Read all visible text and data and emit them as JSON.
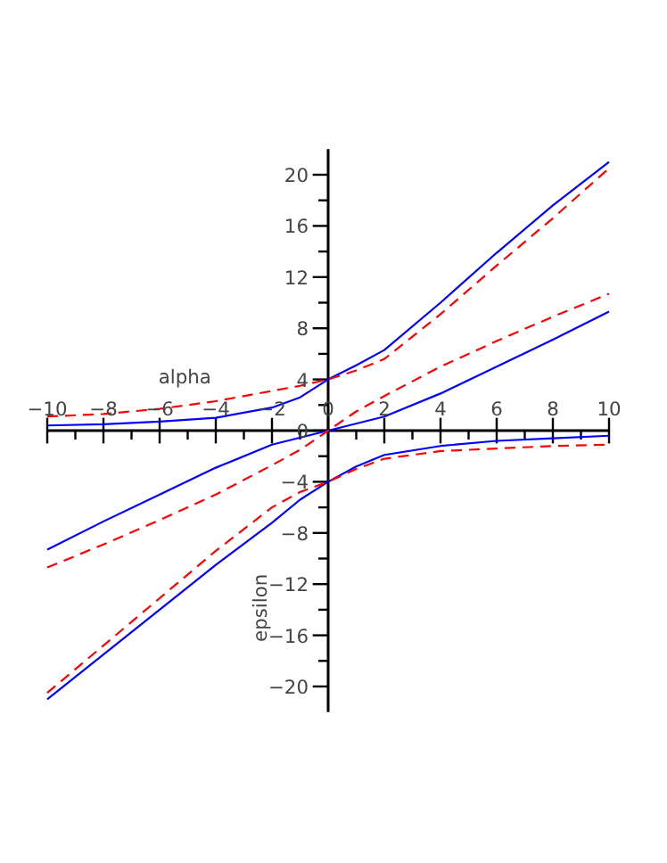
{
  "chart_data": {
    "type": "line",
    "xlabel": "alpha",
    "ylabel": "epsilon",
    "xlim": [
      -10,
      10
    ],
    "ylim": [
      -22,
      22
    ],
    "xticks": [
      -10,
      {
        "value": -9,
        "label": null
      },
      -8,
      {
        "value": -7,
        "label": null
      },
      -6,
      {
        "value": -5,
        "label": null
      },
      -4,
      {
        "value": -3,
        "label": null
      },
      -2,
      {
        "value": -1,
        "label": null
      },
      0,
      {
        "value": 1,
        "label": null
      },
      2,
      {
        "value": 3,
        "label": null
      },
      4,
      {
        "value": 5,
        "label": null
      },
      6,
      {
        "value": 7,
        "label": null
      },
      8,
      {
        "value": 9,
        "label": null
      },
      10
    ],
    "yticks": [
      -20,
      {
        "value": -18,
        "label": null
      },
      -16,
      {
        "value": -14,
        "label": null
      },
      -12,
      {
        "value": -10,
        "label": null
      },
      -8,
      {
        "value": -6,
        "label": null
      },
      -4,
      {
        "value": -2,
        "label": null
      },
      0,
      {
        "value": 2,
        "label": null
      },
      4,
      {
        "value": 6,
        "label": null
      },
      8,
      {
        "value": 10,
        "label": null
      },
      12,
      {
        "value": 14,
        "label": null
      },
      16,
      {
        "value": 18,
        "label": null
      },
      20
    ],
    "grid": false,
    "series": [
      {
        "color": "#0000ff",
        "line_style": "solid",
        "x": [
          -10,
          -8,
          -6,
          -4,
          -2,
          -1,
          0,
          1,
          2,
          4,
          6,
          8,
          10
        ],
        "values": [
          0.4,
          0.5,
          0.7,
          1.0,
          1.8,
          2.6,
          4,
          5.1,
          6.3,
          10,
          13.9,
          17.6,
          21
        ]
      },
      {
        "color": "#0000ff",
        "line_style": "solid",
        "x": [
          -10,
          -8,
          -6,
          -4,
          -2,
          -1,
          0,
          1,
          2,
          4,
          6,
          8,
          10
        ],
        "values": [
          -21,
          -17.5,
          -14,
          -10.5,
          -7.2,
          -5.4,
          -4,
          -2.8,
          -1.9,
          -1.2,
          -0.8,
          -0.6,
          -0.4
        ]
      },
      {
        "color": "#0000ff",
        "line_style": "solid",
        "x": [
          -10,
          -8,
          -6,
          -4,
          -2,
          0,
          2,
          4,
          6,
          8,
          10
        ],
        "values": [
          -9.3,
          -7.1,
          -5,
          -2.9,
          -1.1,
          0,
          1.1,
          2.9,
          5,
          7.1,
          9.3
        ]
      },
      {
        "color": "#ff0000",
        "line_style": "dashed",
        "x": [
          -10,
          -8,
          -6,
          -4,
          -2,
          -1,
          0,
          1,
          2,
          4,
          6,
          8,
          10
        ],
        "values": [
          1.1,
          1.3,
          1.7,
          2.3,
          3.1,
          3.5,
          4,
          4.7,
          5.6,
          9.1,
          12.9,
          16.6,
          20.5
        ]
      },
      {
        "color": "#ff0000",
        "line_style": "dashed",
        "x": [
          -10,
          -8,
          -6,
          -4,
          -2,
          -1,
          0,
          1,
          2,
          4,
          6,
          8,
          10
        ],
        "values": [
          -20.5,
          -16.8,
          -13.1,
          -9.4,
          -6,
          -4.8,
          -4,
          -3,
          -2.2,
          -1.6,
          -1.4,
          -1.2,
          -1.1
        ]
      },
      {
        "color": "#ff0000",
        "line_style": "dashed",
        "x": [
          -10,
          -8,
          -6,
          -4,
          -2,
          -1,
          0,
          1,
          2,
          4,
          6,
          8,
          10
        ],
        "values": [
          -10.7,
          -8.9,
          -7,
          -5,
          -2.7,
          -1.5,
          0,
          1.5,
          2.7,
          5,
          7,
          8.9,
          10.7
        ]
      }
    ]
  }
}
